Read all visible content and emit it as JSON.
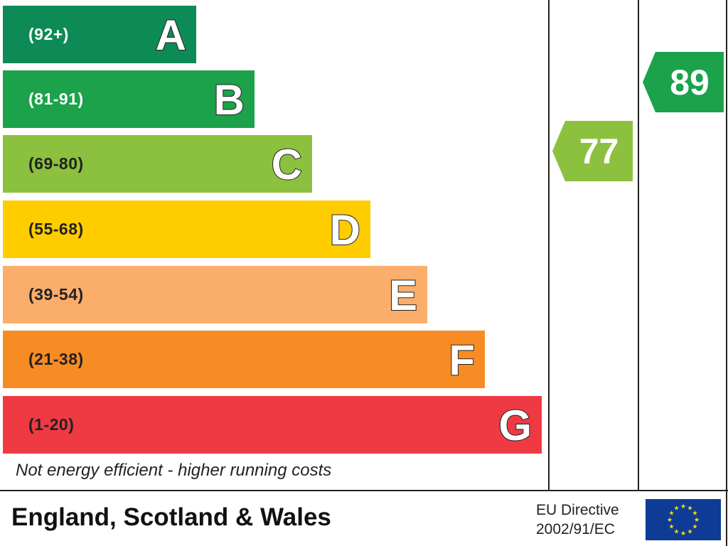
{
  "bands": [
    {
      "letter": "A",
      "range": "(92+)",
      "color": "#0e8a57",
      "text_color": "#ffffff"
    },
    {
      "letter": "B",
      "range": "(81-91)",
      "color": "#1ba24b",
      "text_color": "#ffffff"
    },
    {
      "letter": "C",
      "range": "(69-80)",
      "color": "#8cc03f",
      "text_color": "#222222"
    },
    {
      "letter": "D",
      "range": "(55-68)",
      "color": "#ffcc00",
      "text_color": "#222222"
    },
    {
      "letter": "E",
      "range": "(39-54)",
      "color": "#fbad6b",
      "text_color": "#222222"
    },
    {
      "letter": "F",
      "range": "(21-38)",
      "color": "#f78c24",
      "text_color": "#222222"
    },
    {
      "letter": "G",
      "range": "(1-20)",
      "color": "#ef3a43",
      "text_color": "#222222"
    }
  ],
  "note": "Not energy efficient - higher running costs",
  "footer": {
    "region": "England, Scotland & Wales",
    "directive_line1": "EU Directive",
    "directive_line2": "2002/91/EC"
  },
  "ratings": {
    "current": {
      "value": "77",
      "color": "#8cc03f"
    },
    "potential": {
      "value": "89",
      "color": "#1ba24b"
    }
  },
  "colors": {
    "flag_blue": "#0d3b96",
    "flag_star": "#ffdd00"
  }
}
